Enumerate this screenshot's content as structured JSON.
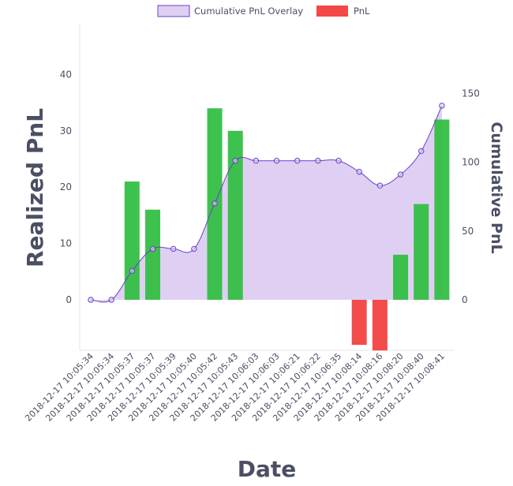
{
  "chart_data": {
    "type": "bar",
    "title": "",
    "xlabel": "Date",
    "ylabel": "Realized PnL",
    "y2label": "Cumulative PnL",
    "legend_position": "top",
    "grid": false,
    "categories": [
      "2018-12-17 10:05:34",
      "2018-12-17 10:05:34",
      "2018-12-17 10:05:37",
      "2018-12-17 10:05:37",
      "2018-12-17 10:05:39",
      "2018-12-17 10:05:40",
      "2018-12-17 10:05:42",
      "2018-12-17 10:05:43",
      "2018-12-17 10:06:03",
      "2018-12-17 10:06:03",
      "2018-12-17 10:06:21",
      "2018-12-17 10:06:22",
      "2018-12-17 10:06:35",
      "2018-12-17 10:08:14",
      "2018-12-17 10:08:16",
      "2018-12-17 10:08:20",
      "2018-12-17 10:08:40",
      "2018-12-17 10:08:41"
    ],
    "yticks": [
      0,
      10,
      20,
      30,
      40
    ],
    "y2ticks": [
      0,
      50,
      100,
      150
    ],
    "ylim": [
      -9,
      49
    ],
    "y2lim": [
      -37,
      200
    ],
    "series": [
      {
        "name": "Cumulative PnL Overlay",
        "type": "area",
        "axis": "y2",
        "fill_color": "#dfd0f3",
        "line_color": "#6a3fc8",
        "values": [
          0,
          0,
          21,
          37,
          37,
          37,
          70,
          101,
          101,
          101,
          101,
          101,
          101,
          93,
          83,
          91,
          108,
          141
        ]
      },
      {
        "name": "PnL",
        "type": "bar",
        "axis": "y",
        "positive_color": "#2ebd3f",
        "negative_color": "#f44747",
        "values": [
          0,
          0,
          21,
          16,
          0,
          0,
          34,
          30,
          0,
          0,
          0,
          0,
          0,
          -8,
          -9,
          8,
          17,
          32
        ]
      }
    ]
  }
}
